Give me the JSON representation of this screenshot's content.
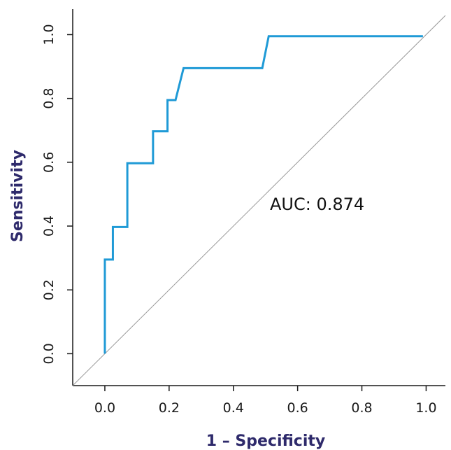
{
  "chart_data": {
    "type": "line",
    "title": "",
    "xlabel": "1 – Specificity",
    "ylabel": "Sensitivity",
    "xlim": [
      -0.1,
      1.06
    ],
    "ylim": [
      -0.1,
      1.08
    ],
    "x_ticks": [
      "0.0",
      "0.2",
      "0.4",
      "0.6",
      "0.8",
      "1.0"
    ],
    "y_ticks": [
      "0.0",
      "0.2",
      "0.4",
      "0.6",
      "0.8",
      "1.0"
    ],
    "grid": false,
    "legend": "none",
    "annotation": "AUC: 0.874",
    "series": [
      {
        "x": [
          0.0,
          0.0,
          0.025,
          0.025,
          0.07,
          0.07,
          0.15,
          0.15,
          0.195,
          0.195,
          0.22,
          0.245,
          0.49,
          0.51,
          0.99
        ],
        "y": [
          0.0,
          0.295,
          0.295,
          0.397,
          0.397,
          0.597,
          0.597,
          0.697,
          0.697,
          0.795,
          0.795,
          0.895,
          0.895,
          0.995,
          0.995
        ]
      }
    ],
    "reference_line": {
      "x": [
        -0.1,
        1.06
      ],
      "y": [
        -0.1,
        1.06
      ]
    }
  },
  "colors": {
    "curve": "#1f9ad6",
    "reference": "#9a9a9a",
    "axis": "#1a1a1a",
    "axis_title": "#2e2a6b"
  }
}
